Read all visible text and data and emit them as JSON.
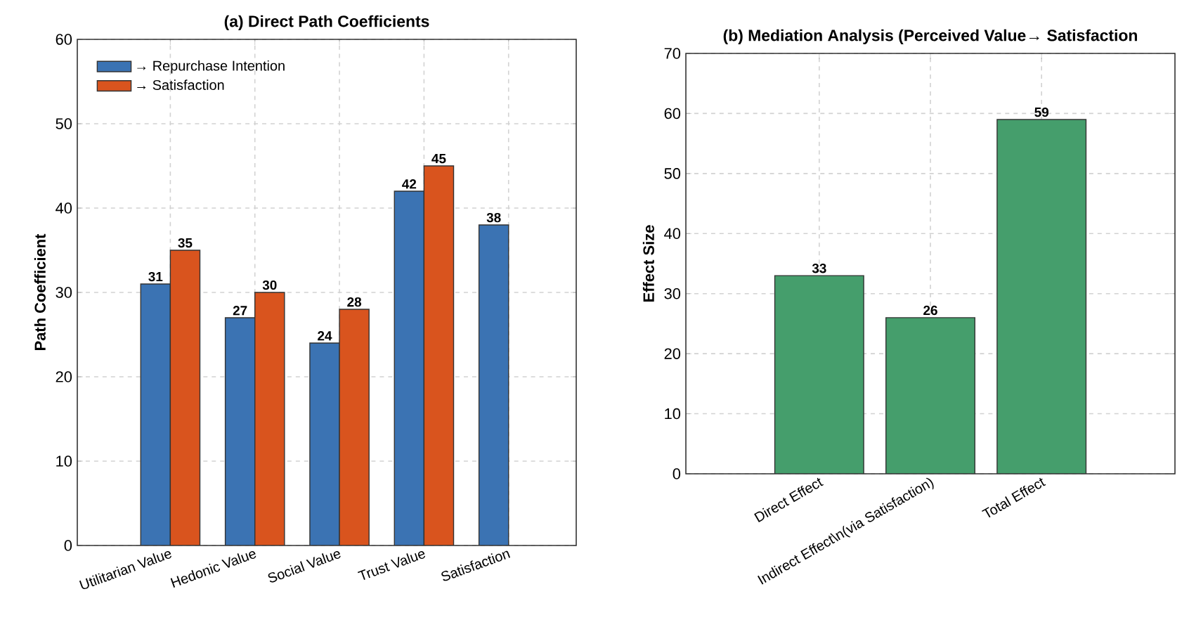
{
  "chart_data": [
    {
      "type": "bar",
      "title": "(a) Direct Path Coefficients",
      "ylabel": "Path Coefficient",
      "categories": [
        "Utilitarian Value",
        "Hedonic Value",
        "Social Value",
        "Trust Value",
        "Satisfaction"
      ],
      "series": [
        {
          "name": "→ Repurchase Intention",
          "color": "#3b73b3",
          "values": [
            31,
            27,
            24,
            42,
            38
          ]
        },
        {
          "name": "→ Satisfaction",
          "color": "#d9541e",
          "values": [
            35,
            30,
            28,
            45,
            null
          ]
        }
      ],
      "ylim": [
        0,
        60
      ],
      "yticks": [
        0,
        10,
        20,
        30,
        40,
        50,
        60
      ],
      "grid": true,
      "legend": "top left",
      "data_labels": true
    },
    {
      "type": "bar",
      "title": "(b) Mediation Analysis (Perceived Value→ Satisfaction",
      "ylabel": "Effect Size",
      "categories": [
        "Direct Effect",
        "Indirect Effect\\n(via Satisfaction)",
        "Total Effect"
      ],
      "values": [
        33,
        26,
        59
      ],
      "color": "#459e6c",
      "ylim": [
        0,
        70
      ],
      "yticks": [
        0,
        10,
        20,
        30,
        40,
        50,
        60,
        70
      ],
      "grid": true,
      "data_labels": true
    }
  ]
}
